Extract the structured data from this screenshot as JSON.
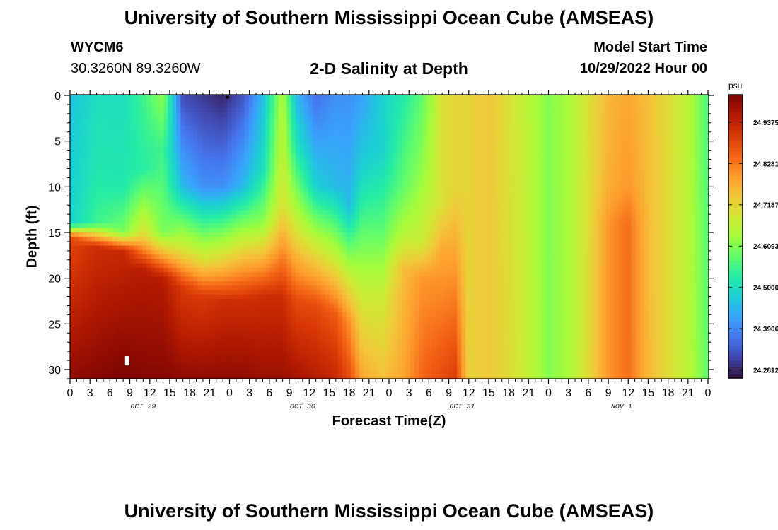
{
  "header": {
    "title": "University of Southern Mississippi Ocean Cube (AMSEAS)",
    "station_id": "WYCM6",
    "coords": "30.3260N  89.3260W",
    "plot_title": "2-D Salinity at Depth",
    "start_label": "Model Start Time",
    "start_value": "10/29/2022 Hour 00"
  },
  "footer": {
    "title": "University of Southern Mississippi Ocean Cube (AMSEAS)"
  },
  "colors": {
    "ramp": [
      "#30123b",
      "#4145ab",
      "#4675ed",
      "#39a2fc",
      "#1bcfd4",
      "#24eca6",
      "#61fc6c",
      "#a4fc3b",
      "#d1e834",
      "#f3c63a",
      "#fe9b2d",
      "#f36315",
      "#d93806",
      "#b11901",
      "#7a0403"
    ]
  },
  "chart_data": {
    "type": "heatmap",
    "title": "2-D Salinity at Depth",
    "xlabel": "Forecast Time(Z)",
    "ylabel": "Depth (ft)",
    "x_range_hours": [
      0,
      96
    ],
    "y_range_ft": [
      0,
      31
    ],
    "x_tick_labels": [
      "0",
      "3",
      "6",
      "9",
      "12",
      "15",
      "18",
      "21",
      "0",
      "3",
      "6",
      "9",
      "12",
      "15",
      "18",
      "21",
      "0",
      "3",
      "6",
      "9",
      "12",
      "15",
      "18",
      "21",
      "0",
      "3",
      "6",
      "9",
      "12",
      "15",
      "18",
      "21",
      "0"
    ],
    "day_labels": [
      {
        "label": "OCT 29",
        "hour": 11
      },
      {
        "label": "OCT 30",
        "hour": 35
      },
      {
        "label": "OCT 31",
        "hour": 59
      },
      {
        "label": "NOV 1",
        "hour": 83
      }
    ],
    "y_ticks": [
      0,
      5,
      10,
      15,
      20,
      25,
      30
    ],
    "colorbar": {
      "unit": "psu",
      "min": 24.26,
      "max": 25.01,
      "labels": [
        "24.9375",
        "24.8281",
        "24.7187",
        "24.6093",
        "24.5000",
        "24.3906",
        "24.2812"
      ]
    },
    "salinity_columns": [
      {
        "hour": 0,
        "profile": [
          [
            0,
            24.46
          ],
          [
            14,
            24.48
          ],
          [
            15.5,
            24.88
          ],
          [
            31,
            24.99
          ]
        ]
      },
      {
        "hour": 4,
        "profile": [
          [
            0,
            24.5
          ],
          [
            9,
            24.52
          ],
          [
            14,
            24.55
          ],
          [
            16.5,
            24.92
          ],
          [
            31,
            25.0
          ]
        ]
      },
      {
        "hour": 8,
        "profile": [
          [
            0,
            24.5
          ],
          [
            10,
            24.52
          ],
          [
            15,
            24.6
          ],
          [
            17,
            24.93
          ],
          [
            31,
            25.01
          ]
        ]
      },
      {
        "hour": 11,
        "profile": [
          [
            0,
            24.55
          ],
          [
            8,
            24.53
          ],
          [
            15,
            24.7
          ],
          [
            19,
            24.95
          ],
          [
            31,
            25.0
          ]
        ]
      },
      {
        "hour": 14,
        "profile": [
          [
            0,
            24.62
          ],
          [
            6,
            24.55
          ],
          [
            15,
            24.6
          ],
          [
            20,
            24.95
          ],
          [
            31,
            25.0
          ]
        ]
      },
      {
        "hour": 17,
        "profile": [
          [
            0,
            24.32
          ],
          [
            10,
            24.45
          ],
          [
            17,
            24.7
          ],
          [
            21,
            24.9
          ],
          [
            31,
            24.99
          ]
        ]
      },
      {
        "hour": 20,
        "profile": [
          [
            0,
            24.3
          ],
          [
            10,
            24.4
          ],
          [
            18,
            24.7
          ],
          [
            22,
            24.9
          ],
          [
            31,
            24.99
          ]
        ]
      },
      {
        "hour": 23,
        "profile": [
          [
            0,
            24.28
          ],
          [
            10,
            24.4
          ],
          [
            18,
            24.72
          ],
          [
            22.5,
            24.92
          ],
          [
            31,
            24.99
          ]
        ]
      },
      {
        "hour": 26,
        "profile": [
          [
            0,
            24.33
          ],
          [
            10,
            24.45
          ],
          [
            17,
            24.72
          ],
          [
            22.5,
            24.92
          ],
          [
            31,
            24.99
          ]
        ]
      },
      {
        "hour": 29,
        "profile": [
          [
            0,
            24.45
          ],
          [
            8,
            24.5
          ],
          [
            14,
            24.62
          ],
          [
            22,
            24.92
          ],
          [
            31,
            24.98
          ]
        ]
      },
      {
        "hour": 32,
        "profile": [
          [
            0,
            24.65
          ],
          [
            5,
            24.67
          ],
          [
            12,
            24.7
          ],
          [
            22,
            24.92
          ],
          [
            31,
            24.98
          ]
        ]
      },
      {
        "hour": 34,
        "profile": [
          [
            0,
            24.45
          ],
          [
            6,
            24.52
          ],
          [
            14,
            24.68
          ],
          [
            22.5,
            24.88
          ],
          [
            31,
            24.97
          ]
        ]
      },
      {
        "hour": 37,
        "profile": [
          [
            0,
            24.36
          ],
          [
            10,
            24.48
          ],
          [
            17,
            24.7
          ],
          [
            23,
            24.88
          ],
          [
            31,
            24.95
          ]
        ]
      },
      {
        "hour": 40,
        "profile": [
          [
            0,
            24.4
          ],
          [
            10,
            24.45
          ],
          [
            18,
            24.68
          ],
          [
            24,
            24.86
          ],
          [
            31,
            24.93
          ]
        ]
      },
      {
        "hour": 42,
        "profile": [
          [
            0,
            24.4
          ],
          [
            12,
            24.45
          ],
          [
            20,
            24.68
          ],
          [
            24.5,
            24.8
          ],
          [
            31,
            24.88
          ]
        ]
      },
      {
        "hour": 44,
        "profile": [
          [
            0,
            24.42
          ],
          [
            8,
            24.48
          ],
          [
            15,
            24.58
          ],
          [
            22,
            24.68
          ],
          [
            31,
            24.78
          ]
        ]
      },
      {
        "hour": 47,
        "profile": [
          [
            0,
            24.48
          ],
          [
            6,
            24.48
          ],
          [
            15,
            24.58
          ],
          [
            22,
            24.68
          ],
          [
            31,
            24.75
          ]
        ]
      },
      {
        "hour": 50,
        "profile": [
          [
            0,
            24.52
          ],
          [
            10,
            24.58
          ],
          [
            15,
            24.65
          ],
          [
            19,
            24.75
          ],
          [
            31,
            24.78
          ]
        ]
      },
      {
        "hour": 53,
        "profile": [
          [
            0,
            24.58
          ],
          [
            8,
            24.62
          ],
          [
            16,
            24.68
          ],
          [
            20,
            24.8
          ],
          [
            31,
            24.85
          ]
        ]
      },
      {
        "hour": 56,
        "profile": [
          [
            0,
            24.7
          ],
          [
            12,
            24.7
          ],
          [
            17,
            24.78
          ],
          [
            31,
            24.88
          ]
        ]
      },
      {
        "hour": 58,
        "profile": [
          [
            0,
            24.72
          ],
          [
            10,
            24.72
          ],
          [
            17,
            24.78
          ],
          [
            31,
            24.9
          ]
        ]
      },
      {
        "hour": 60,
        "profile": [
          [
            0,
            24.72
          ],
          [
            31,
            24.72
          ]
        ]
      },
      {
        "hour": 63,
        "profile": [
          [
            0,
            24.74
          ],
          [
            31,
            24.74
          ]
        ]
      },
      {
        "hour": 66,
        "profile": [
          [
            0,
            24.7
          ],
          [
            31,
            24.71
          ]
        ]
      },
      {
        "hour": 69,
        "profile": [
          [
            0,
            24.66
          ],
          [
            31,
            24.67
          ]
        ]
      },
      {
        "hour": 72,
        "profile": [
          [
            0,
            24.61
          ],
          [
            31,
            24.61
          ]
        ]
      },
      {
        "hour": 75,
        "profile": [
          [
            0,
            24.64
          ],
          [
            31,
            24.64
          ]
        ]
      },
      {
        "hour": 78,
        "profile": [
          [
            0,
            24.7
          ],
          [
            31,
            24.71
          ]
        ]
      },
      {
        "hour": 81,
        "profile": [
          [
            0,
            24.76
          ],
          [
            10,
            24.77
          ],
          [
            14,
            24.8
          ],
          [
            31,
            24.8
          ]
        ]
      },
      {
        "hour": 84,
        "profile": [
          [
            0,
            24.78
          ],
          [
            10,
            24.8
          ],
          [
            14,
            24.84
          ],
          [
            31,
            24.84
          ]
        ]
      },
      {
        "hour": 87,
        "profile": [
          [
            0,
            24.75
          ],
          [
            31,
            24.76
          ]
        ]
      },
      {
        "hour": 90,
        "profile": [
          [
            0,
            24.71
          ],
          [
            31,
            24.71
          ]
        ]
      },
      {
        "hour": 93,
        "profile": [
          [
            0,
            24.66
          ],
          [
            31,
            24.66
          ]
        ]
      },
      {
        "hour": 96,
        "profile": [
          [
            0,
            24.56
          ],
          [
            31,
            24.58
          ]
        ]
      }
    ],
    "markers": [
      {
        "hour": 23.7,
        "depth_ft": 0.2,
        "color": "#000000"
      },
      {
        "hour": 8.6,
        "depth_ft": 29.0,
        "color": "#ffffff"
      }
    ]
  }
}
